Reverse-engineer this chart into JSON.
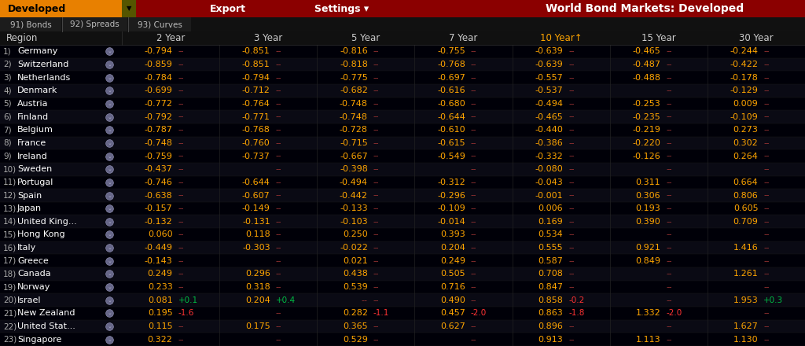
{
  "title": "World Bond Markets: Developed",
  "tab_label": "Developed",
  "tabs": [
    "91) Bonds",
    "92) Spreads",
    "93) Curves"
  ],
  "rows": [
    {
      "num": "1)",
      "name": "Germany",
      "y2": "-0.794",
      "y2c": "--",
      "y3": "-0.851",
      "y3c": "--",
      "y5": "-0.816",
      "y5c": "--",
      "y7": "-0.755",
      "y7c": "--",
      "y10": "-0.639",
      "y10c": "--",
      "y15": "-0.465",
      "y15c": "--",
      "y30": "-0.244",
      "y30c": "--"
    },
    {
      "num": "2)",
      "name": "Switzerland",
      "y2": "-0.859",
      "y2c": "--",
      "y3": "-0.851",
      "y3c": "--",
      "y5": "-0.818",
      "y5c": "--",
      "y7": "-0.768",
      "y7c": "--",
      "y10": "-0.639",
      "y10c": "--",
      "y15": "-0.487",
      "y15c": "--",
      "y30": "-0.422",
      "y30c": "--"
    },
    {
      "num": "3)",
      "name": "Netherlands",
      "y2": "-0.784",
      "y2c": "--",
      "y3": "-0.794",
      "y3c": "--",
      "y5": "-0.775",
      "y5c": "--",
      "y7": "-0.697",
      "y7c": "--",
      "y10": "-0.557",
      "y10c": "--",
      "y15": "-0.488",
      "y15c": "--",
      "y30": "-0.178",
      "y30c": "--"
    },
    {
      "num": "4)",
      "name": "Denmark",
      "y2": "-0.699",
      "y2c": "--",
      "y3": "-0.712",
      "y3c": "--",
      "y5": "-0.682",
      "y5c": "--",
      "y7": "-0.616",
      "y7c": "--",
      "y10": "-0.537",
      "y10c": "--",
      "y15": "",
      "y15c": "--",
      "y30": "-0.129",
      "y30c": "--"
    },
    {
      "num": "5)",
      "name": "Austria",
      "y2": "-0.772",
      "y2c": "--",
      "y3": "-0.764",
      "y3c": "--",
      "y5": "-0.748",
      "y5c": "--",
      "y7": "-0.680",
      "y7c": "--",
      "y10": "-0.494",
      "y10c": "--",
      "y15": "-0.253",
      "y15c": "--",
      "y30": "0.009",
      "y30c": "--"
    },
    {
      "num": "6)",
      "name": "Finland",
      "y2": "-0.792",
      "y2c": "--",
      "y3": "-0.771",
      "y3c": "--",
      "y5": "-0.748",
      "y5c": "--",
      "y7": "-0.644",
      "y7c": "--",
      "y10": "-0.465",
      "y10c": "--",
      "y15": "-0.235",
      "y15c": "--",
      "y30": "-0.109",
      "y30c": "--"
    },
    {
      "num": "7)",
      "name": "Belgium",
      "y2": "-0.787",
      "y2c": "--",
      "y3": "-0.768",
      "y3c": "--",
      "y5": "-0.728",
      "y5c": "--",
      "y7": "-0.610",
      "y7c": "--",
      "y10": "-0.440",
      "y10c": "--",
      "y15": "-0.219",
      "y15c": "--",
      "y30": "0.273",
      "y30c": "--"
    },
    {
      "num": "8)",
      "name": "France",
      "y2": "-0.748",
      "y2c": "--",
      "y3": "-0.760",
      "y3c": "--",
      "y5": "-0.715",
      "y5c": "--",
      "y7": "-0.615",
      "y7c": "--",
      "y10": "-0.386",
      "y10c": "--",
      "y15": "-0.220",
      "y15c": "--",
      "y30": "0.302",
      "y30c": "--"
    },
    {
      "num": "9)",
      "name": "Ireland",
      "y2": "-0.759",
      "y2c": "--",
      "y3": "-0.737",
      "y3c": "--",
      "y5": "-0.667",
      "y5c": "--",
      "y7": "-0.549",
      "y7c": "--",
      "y10": "-0.332",
      "y10c": "--",
      "y15": "-0.126",
      "y15c": "--",
      "y30": "0.264",
      "y30c": "--"
    },
    {
      "num": "10)",
      "name": "Sweden",
      "y2": "-0.437",
      "y2c": "--",
      "y3": "",
      "y3c": "--",
      "y5": "-0.398",
      "y5c": "--",
      "y7": "",
      "y7c": "--",
      "y10": "-0.080",
      "y10c": "--",
      "y15": "",
      "y15c": "--",
      "y30": "",
      "y30c": "--"
    },
    {
      "num": "11)",
      "name": "Portugal",
      "y2": "-0.746",
      "y2c": "--",
      "y3": "-0.644",
      "y3c": "--",
      "y5": "-0.494",
      "y5c": "--",
      "y7": "-0.312",
      "y7c": "--",
      "y10": "-0.043",
      "y10c": "--",
      "y15": "0.311",
      "y15c": "--",
      "y30": "0.664",
      "y30c": "--"
    },
    {
      "num": "12)",
      "name": "Spain",
      "y2": "-0.638",
      "y2c": "--",
      "y3": "-0.607",
      "y3c": "--",
      "y5": "-0.442",
      "y5c": "--",
      "y7": "-0.296",
      "y7c": "--",
      "y10": "-0.001",
      "y10c": "--",
      "y15": "0.306",
      "y15c": "--",
      "y30": "0.806",
      "y30c": "--"
    },
    {
      "num": "13)",
      "name": "Japan",
      "y2": "-0.157",
      "y2c": "--",
      "y3": "-0.149",
      "y3c": "--",
      "y5": "-0.133",
      "y5c": "--",
      "y7": "-0.109",
      "y7c": "--",
      "y10": "0.006",
      "y10c": "--",
      "y15": "0.193",
      "y15c": "--",
      "y30": "0.605",
      "y30c": "--"
    },
    {
      "num": "14)",
      "name": "United King...",
      "y2": "-0.132",
      "y2c": "--",
      "y3": "-0.131",
      "y3c": "--",
      "y5": "-0.103",
      "y5c": "--",
      "y7": "-0.014",
      "y7c": "--",
      "y10": "0.169",
      "y10c": "--",
      "y15": "0.390",
      "y15c": "--",
      "y30": "0.709",
      "y30c": "--"
    },
    {
      "num": "15)",
      "name": "Hong Kong",
      "y2": "0.060",
      "y2c": "--",
      "y3": "0.118",
      "y3c": "--",
      "y5": "0.250",
      "y5c": "--",
      "y7": "0.393",
      "y7c": "--",
      "y10": "0.534",
      "y10c": "--",
      "y15": "",
      "y15c": "--",
      "y30": "",
      "y30c": "--"
    },
    {
      "num": "16)",
      "name": "Italy",
      "y2": "-0.449",
      "y2c": "--",
      "y3": "-0.303",
      "y3c": "--",
      "y5": "-0.022",
      "y5c": "--",
      "y7": "0.204",
      "y7c": "--",
      "y10": "0.555",
      "y10c": "--",
      "y15": "0.921",
      "y15c": "--",
      "y30": "1.416",
      "y30c": "--"
    },
    {
      "num": "17)",
      "name": "Greece",
      "y2": "-0.143",
      "y2c": "--",
      "y3": "",
      "y3c": "--",
      "y5": "0.021",
      "y5c": "--",
      "y7": "0.249",
      "y7c": "--",
      "y10": "0.587",
      "y10c": "--",
      "y15": "0.849",
      "y15c": "--",
      "y30": "",
      "y30c": "--"
    },
    {
      "num": "18)",
      "name": "Canada",
      "y2": "0.249",
      "y2c": "--",
      "y3": "0.296",
      "y3c": "--",
      "y5": "0.438",
      "y5c": "--",
      "y7": "0.505",
      "y7c": "--",
      "y10": "0.708",
      "y10c": "--",
      "y15": "",
      "y15c": "--",
      "y30": "1.261",
      "y30c": "--"
    },
    {
      "num": "19)",
      "name": "Norway",
      "y2": "0.233",
      "y2c": "--",
      "y3": "0.318",
      "y3c": "--",
      "y5": "0.539",
      "y5c": "--",
      "y7": "0.716",
      "y7c": "--",
      "y10": "0.847",
      "y10c": "--",
      "y15": "",
      "y15c": "--",
      "y30": "",
      "y30c": "--"
    },
    {
      "num": "20)",
      "name": "Israel",
      "y2": "0.081",
      "y2c": "+0.1",
      "y3": "0.204",
      "y3c": "+0.4",
      "y5": "--",
      "y5c": "--",
      "y7": "0.490",
      "y7c": "--",
      "y10": "0.858",
      "y10c": "-0.2",
      "y15": "",
      "y15c": "--",
      "y30": "1.953",
      "y30c": "+0.3"
    },
    {
      "num": "21)",
      "name": "New Zealand",
      "y2": "0.195",
      "y2c": "-1.6",
      "y3": "",
      "y3c": "--",
      "y5": "0.282",
      "y5c": "-1.1",
      "y7": "0.457",
      "y7c": "-2.0",
      "y10": "0.863",
      "y10c": "-1.8",
      "y15": "1.332",
      "y15c": "-2.0",
      "y30": "",
      "y30c": "--"
    },
    {
      "num": "22)",
      "name": "United Stat...",
      "y2": "0.115",
      "y2c": "--",
      "y3": "0.175",
      "y3c": "--",
      "y5": "0.365",
      "y5c": "--",
      "y7": "0.627",
      "y7c": "--",
      "y10": "0.896",
      "y10c": "--",
      "y15": "",
      "y15c": "--",
      "y30": "1.627",
      "y30c": "--"
    },
    {
      "num": "23)",
      "name": "Singapore",
      "y2": "0.322",
      "y2c": "--",
      "y3": "",
      "y3c": "--",
      "y5": "0.529",
      "y5c": "--",
      "y7": "",
      "y7c": "--",
      "y10": "0.913",
      "y10c": "--",
      "y15": "1.113",
      "y15c": "--",
      "y30": "1.130",
      "y30c": "--"
    }
  ],
  "bg_color": "#000000",
  "header_bar_color": "#8B0000",
  "value_color": "#FFA500",
  "change_neg_color": "#FF3333",
  "change_pos_color": "#00BB44",
  "change_neutral_color": "#993333",
  "region_color": "#ffffff",
  "col_header_color": "#cccccc",
  "ten_year_header_color": "#FFA500",
  "tab_color": "#bbbbbb",
  "title_color": "#ffffff",
  "top_bar_left_color": "#E88000",
  "icon_color": "#666688"
}
